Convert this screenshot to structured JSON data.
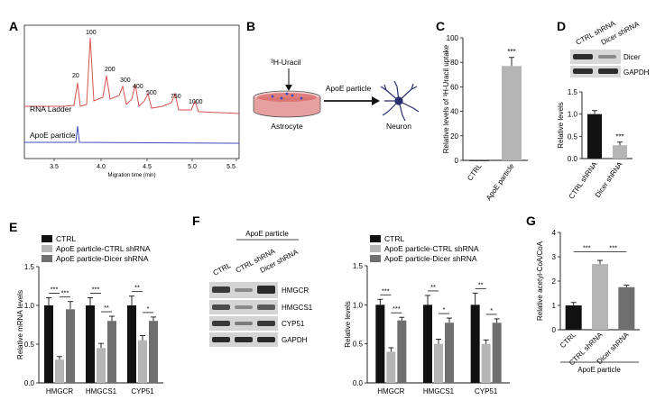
{
  "panels": {
    "A": {
      "letter": "A",
      "trace_labels": [
        "RNA Ladder",
        "ApoE particle"
      ],
      "peak_labels": [
        "20",
        "100",
        "200",
        "300",
        "400",
        "500",
        "750",
        "1000"
      ],
      "xticks": [
        "3.5",
        "4.0",
        "4.5",
        "5.0",
        "5.5"
      ],
      "xlabel": "Migration time (min)"
    },
    "B": {
      "letter": "B",
      "tracer": "³H-Uracil",
      "cell_from": "Astrocyte",
      "transfer": "ApoE particle",
      "cell_to": "Neuron"
    },
    "C": {
      "letter": "C"
    },
    "D": {
      "letter": "D",
      "blot_header": [
        "CTRL shRNA",
        "Dicer shRNA"
      ],
      "blot_rows": [
        "Dicer",
        "GAPDH"
      ]
    },
    "E": {
      "letter": "E"
    },
    "F": {
      "letter": "F",
      "blot_group": "ApoE particle",
      "blot_header": [
        "CTRL",
        "CTRL shRNA",
        "Dicer shRNA"
      ],
      "blot_rows": [
        "HMGCR",
        "HMGCS1",
        "CYP51",
        "GAPDH"
      ]
    },
    "G": {
      "letter": "G",
      "group_label": "ApoE particle"
    }
  },
  "colors": {
    "black": "#111111",
    "light_gray": "#b5b5b5",
    "dark_gray": "#6f6f6f",
    "red_trace": "#d9534f",
    "blue_trace": "#3b4bb8"
  },
  "chart_data": [
    {
      "id": "C",
      "type": "bar",
      "categories": [
        "CTRL",
        "ApoE particle"
      ],
      "values": [
        0,
        77
      ],
      "errors": [
        0,
        7
      ],
      "ylabel": "Relative levels of ³H-Uracil uptake",
      "ylim": [
        0,
        100
      ],
      "yticks": [
        "0",
        "20",
        "40",
        "60",
        "80",
        "100"
      ],
      "significance": [
        "",
        "***"
      ],
      "colors": [
        "#111111",
        "#b5b5b5"
      ]
    },
    {
      "id": "D",
      "type": "bar",
      "categories": [
        "CTRL shRNA",
        "Dicer shRNA"
      ],
      "values": [
        1.0,
        0.3
      ],
      "errors": [
        0.08,
        0.07
      ],
      "ylabel": "Relative levels",
      "ylim": [
        0,
        1.5
      ],
      "yticks": [
        "0.0",
        "0.5",
        "1.0",
        "1.5"
      ],
      "significance": [
        "",
        "***"
      ],
      "colors": [
        "#111111",
        "#b5b5b5"
      ]
    },
    {
      "id": "E",
      "type": "bar",
      "categories": [
        "HMGCR",
        "HMGCS1",
        "CYP51"
      ],
      "series": [
        {
          "name": "CTRL",
          "values": [
            1.0,
            1.0,
            1.0
          ],
          "errors": [
            0.1,
            0.1,
            0.12
          ]
        },
        {
          "name": "ApoE particle-CTRL shRNA",
          "values": [
            0.3,
            0.45,
            0.55
          ],
          "errors": [
            0.04,
            0.06,
            0.06
          ]
        },
        {
          "name": "ApoE particle-Dicer shRNA",
          "values": [
            0.95,
            0.8,
            0.8
          ],
          "errors": [
            0.1,
            0.06,
            0.05
          ]
        }
      ],
      "ylabel": "Relative mRNA levels",
      "ylim": [
        0,
        1.5
      ],
      "yticks": [
        "0.0",
        "0.5",
        "1.0",
        "1.5"
      ],
      "significance": [
        {
          "group": 0,
          "pairs": [
            [
              "***",
              0,
              1
            ],
            [
              "***",
              1,
              2
            ]
          ]
        },
        {
          "group": 1,
          "pairs": [
            [
              "***",
              0,
              1
            ],
            [
              "**",
              1,
              2
            ]
          ]
        },
        {
          "group": 2,
          "pairs": [
            [
              "**",
              0,
              1
            ],
            [
              "*",
              1,
              2
            ]
          ]
        }
      ]
    },
    {
      "id": "F",
      "type": "bar",
      "categories": [
        "HMGCR",
        "HMGCS1",
        "CYP51"
      ],
      "series": [
        {
          "name": "CTRL",
          "values": [
            1.0,
            1.0,
            1.0
          ],
          "errors": [
            0.07,
            0.12,
            0.15
          ]
        },
        {
          "name": "ApoE particle-CTRL shRNA",
          "values": [
            0.4,
            0.5,
            0.5
          ],
          "errors": [
            0.05,
            0.06,
            0.05
          ]
        },
        {
          "name": "ApoE particle-Dicer shRNA",
          "values": [
            0.8,
            0.77,
            0.77
          ],
          "errors": [
            0.04,
            0.06,
            0.05
          ]
        }
      ],
      "ylabel": "Relative levels",
      "ylim": [
        0,
        1.5
      ],
      "yticks": [
        "0.0",
        "0.5",
        "1.0",
        "1.5"
      ],
      "significance": [
        {
          "group": 0,
          "pairs": [
            [
              "***",
              0,
              1
            ],
            [
              "***",
              1,
              2
            ]
          ]
        },
        {
          "group": 1,
          "pairs": [
            [
              "**",
              0,
              1
            ],
            [
              "*",
              1,
              2
            ]
          ]
        },
        {
          "group": 2,
          "pairs": [
            [
              "**",
              0,
              1
            ],
            [
              "*",
              1,
              2
            ]
          ]
        }
      ]
    },
    {
      "id": "G",
      "type": "bar",
      "categories": [
        "CTRL",
        "CTRL shRNA",
        "Dicer shRNA"
      ],
      "values": [
        1.0,
        2.7,
        1.75
      ],
      "errors": [
        0.12,
        0.15,
        0.08
      ],
      "ylabel": "Relative acetyl-CoA/CoA",
      "ylim": [
        0,
        4
      ],
      "yticks": [
        "0",
        "1",
        "2",
        "3",
        "4"
      ],
      "significance_pairs": [
        [
          "***",
          0,
          1
        ],
        [
          "***",
          1,
          2
        ]
      ],
      "colors": [
        "#111111",
        "#b5b5b5",
        "#6f6f6f"
      ]
    }
  ]
}
